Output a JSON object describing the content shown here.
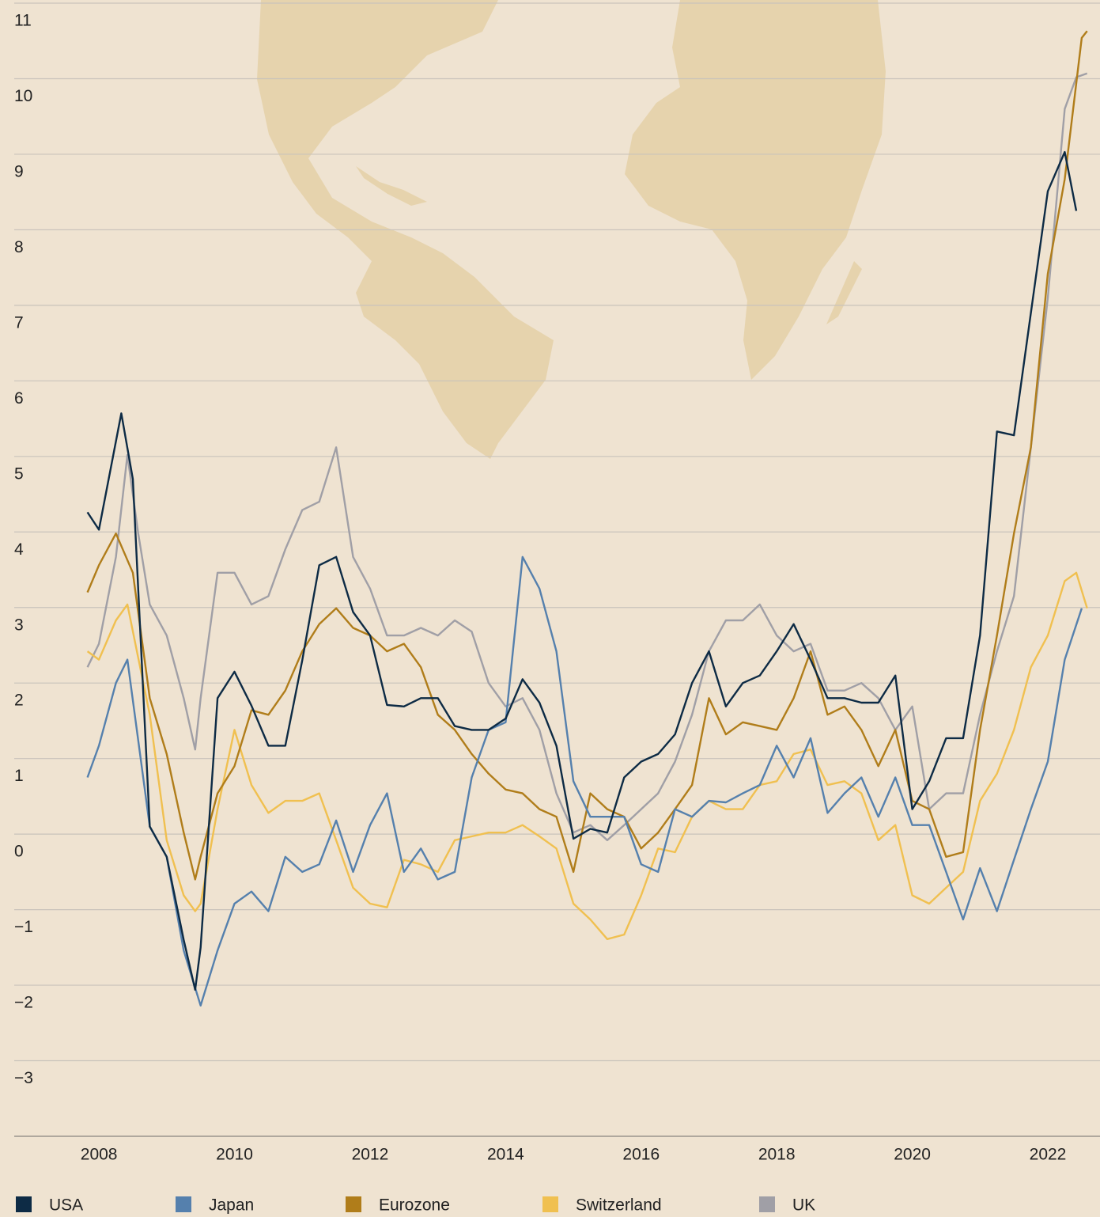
{
  "chart_data": {
    "type": "line",
    "xlim": [
      2006.54,
      2022.77
    ],
    "xticks": [
      2008,
      2010,
      2012,
      2014,
      2016,
      2018,
      2020,
      2022
    ],
    "ylim": [
      -4,
      11
    ],
    "yticks": [
      {
        "value": -3,
        "label": "−3"
      },
      {
        "value": -2,
        "label": "−2"
      },
      {
        "value": -1,
        "label": "−1"
      },
      0,
      1,
      2,
      3,
      4,
      5,
      6,
      7,
      8,
      9,
      10,
      11
    ],
    "grid": true,
    "series": [
      {
        "name": "USA",
        "color": "#0d2b45",
        "x": [
          2007.83,
          2008.0,
          2008.33,
          2008.5,
          2008.75,
          2009.0,
          2009.25,
          2009.42,
          2009.5,
          2009.75,
          2010.0,
          2010.25,
          2010.5,
          2010.75,
          2011.0,
          2011.25,
          2011.5,
          2011.75,
          2012.0,
          2012.25,
          2012.5,
          2012.75,
          2013.0,
          2013.25,
          2013.5,
          2013.75,
          2014.0,
          2014.25,
          2014.5,
          2014.75,
          2015.0,
          2015.25,
          2015.5,
          2015.75,
          2016.0,
          2016.25,
          2016.5,
          2016.75,
          2017.0,
          2017.25,
          2017.5,
          2017.75,
          2018.0,
          2018.25,
          2018.5,
          2018.75,
          2019.0,
          2019.25,
          2019.5,
          2019.75,
          2020.0,
          2020.25,
          2020.5,
          2020.75,
          2021.0,
          2021.25,
          2021.5,
          2021.75,
          2022.0,
          2022.25,
          2022.42
        ],
        "values": [
          4.26,
          4.03,
          5.57,
          4.7,
          0.1,
          -0.3,
          -1.4,
          -2.06,
          -1.5,
          1.8,
          2.15,
          1.7,
          1.17,
          1.17,
          2.3,
          3.56,
          3.67,
          2.94,
          2.63,
          1.71,
          1.69,
          1.8,
          1.8,
          1.43,
          1.38,
          1.38,
          1.53,
          2.05,
          1.74,
          1.17,
          -0.06,
          0.07,
          0.02,
          0.75,
          0.96,
          1.06,
          1.32,
          2.0,
          2.42,
          1.69,
          2.0,
          2.1,
          2.42,
          2.78,
          2.31,
          1.8,
          1.8,
          1.74,
          1.74,
          2.1,
          0.33,
          0.7,
          1.27,
          1.27,
          2.63,
          5.33,
          5.28,
          6.9,
          8.51,
          9.03,
          8.25
        ]
      },
      {
        "name": "Japan",
        "color": "#5580ad",
        "x": [
          2007.83,
          2008.0,
          2008.25,
          2008.42,
          2008.75,
          2009.0,
          2009.25,
          2009.5,
          2009.75,
          2010.0,
          2010.25,
          2010.5,
          2010.75,
          2011.0,
          2011.25,
          2011.5,
          2011.75,
          2012.0,
          2012.25,
          2012.5,
          2012.75,
          2013.0,
          2013.25,
          2013.5,
          2013.75,
          2014.0,
          2014.25,
          2014.5,
          2014.75,
          2015.0,
          2015.25,
          2015.5,
          2015.75,
          2016.0,
          2016.25,
          2016.5,
          2016.75,
          2017.0,
          2017.25,
          2017.5,
          2017.75,
          2018.0,
          2018.25,
          2018.5,
          2018.75,
          2019.0,
          2019.25,
          2019.5,
          2019.75,
          2020.0,
          2020.25,
          2020.5,
          2020.75,
          2021.0,
          2021.25,
          2021.5,
          2021.75,
          2022.0,
          2022.25,
          2022.5
        ],
        "values": [
          0.75,
          1.17,
          2.0,
          2.31,
          0.1,
          -0.3,
          -1.54,
          -2.27,
          -1.54,
          -0.92,
          -0.76,
          -1.02,
          -0.3,
          -0.5,
          -0.4,
          0.18,
          -0.5,
          0.12,
          0.54,
          -0.5,
          -0.19,
          -0.6,
          -0.5,
          0.75,
          1.38,
          1.48,
          3.67,
          3.25,
          2.42,
          0.7,
          0.23,
          0.23,
          0.23,
          -0.4,
          -0.5,
          0.33,
          0.23,
          0.44,
          0.42,
          0.54,
          0.65,
          1.17,
          0.75,
          1.27,
          0.28,
          0.54,
          0.75,
          0.23,
          0.75,
          0.12,
          0.12,
          -0.5,
          -1.13,
          -0.45,
          -1.02,
          -0.34,
          0.33,
          0.96,
          2.31,
          2.99
        ]
      },
      {
        "name": "Eurozone",
        "color": "#b07d1a",
        "x": [
          2007.83,
          2008.0,
          2008.25,
          2008.5,
          2008.75,
          2009.0,
          2009.25,
          2009.42,
          2009.5,
          2009.75,
          2010.0,
          2010.25,
          2010.5,
          2010.75,
          2011.0,
          2011.25,
          2011.5,
          2011.75,
          2012.0,
          2012.25,
          2012.5,
          2012.75,
          2013.0,
          2013.25,
          2013.5,
          2013.75,
          2014.0,
          2014.25,
          2014.5,
          2014.75,
          2015.0,
          2015.25,
          2015.5,
          2015.75,
          2016.0,
          2016.25,
          2016.5,
          2016.75,
          2017.0,
          2017.25,
          2017.5,
          2017.75,
          2018.0,
          2018.25,
          2018.5,
          2018.75,
          2019.0,
          2019.25,
          2019.5,
          2019.75,
          2020.0,
          2020.25,
          2020.5,
          2020.75,
          2021.0,
          2021.25,
          2021.5,
          2021.75,
          2022.0,
          2022.25,
          2022.5,
          2022.58
        ],
        "values": [
          3.2,
          3.56,
          3.98,
          3.46,
          1.8,
          1.06,
          0.02,
          -0.6,
          -0.3,
          0.54,
          0.9,
          1.64,
          1.58,
          1.9,
          2.42,
          2.78,
          2.99,
          2.73,
          2.63,
          2.42,
          2.52,
          2.21,
          1.58,
          1.38,
          1.06,
          0.8,
          0.59,
          0.54,
          0.33,
          0.23,
          -0.5,
          0.54,
          0.33,
          0.23,
          -0.19,
          0.02,
          0.33,
          0.65,
          1.8,
          1.32,
          1.48,
          1.43,
          1.38,
          1.8,
          2.42,
          1.58,
          1.69,
          1.38,
          0.9,
          1.38,
          0.44,
          0.33,
          -0.3,
          -0.24,
          1.38,
          2.63,
          3.98,
          5.12,
          7.42,
          8.67,
          10.54,
          10.63
        ]
      },
      {
        "name": "Switzerland",
        "color": "#f0c050",
        "x": [
          2007.83,
          2008.0,
          2008.25,
          2008.42,
          2008.75,
          2009.0,
          2009.25,
          2009.42,
          2009.5,
          2009.75,
          2010.0,
          2010.25,
          2010.5,
          2010.75,
          2011.0,
          2011.25,
          2011.5,
          2011.75,
          2012.0,
          2012.25,
          2012.5,
          2012.75,
          2013.0,
          2013.25,
          2013.5,
          2013.75,
          2014.0,
          2014.25,
          2014.5,
          2014.75,
          2015.0,
          2015.25,
          2015.5,
          2015.75,
          2016.0,
          2016.25,
          2016.5,
          2016.75,
          2017.0,
          2017.25,
          2017.5,
          2017.75,
          2018.0,
          2018.25,
          2018.5,
          2018.75,
          2019.0,
          2019.25,
          2019.5,
          2019.75,
          2020.0,
          2020.25,
          2020.5,
          2020.75,
          2021.0,
          2021.25,
          2021.5,
          2021.75,
          2022.0,
          2022.25,
          2022.42,
          2022.58
        ],
        "values": [
          2.42,
          2.31,
          2.83,
          3.04,
          1.58,
          -0.08,
          -0.81,
          -1.02,
          -0.92,
          0.33,
          1.38,
          0.65,
          0.28,
          0.44,
          0.44,
          0.54,
          -0.08,
          -0.71,
          -0.92,
          -0.97,
          -0.34,
          -0.4,
          -0.5,
          -0.08,
          -0.03,
          0.02,
          0.02,
          0.12,
          -0.03,
          -0.19,
          -0.92,
          -1.13,
          -1.39,
          -1.33,
          -0.81,
          -0.19,
          -0.24,
          0.23,
          0.44,
          0.33,
          0.33,
          0.65,
          0.7,
          1.06,
          1.12,
          0.65,
          0.7,
          0.54,
          -0.08,
          0.12,
          -0.81,
          -0.92,
          -0.71,
          -0.5,
          0.44,
          0.8,
          1.38,
          2.21,
          2.63,
          3.35,
          3.46,
          2.99
        ]
      },
      {
        "name": "UK",
        "color": "#a09fa6",
        "x": [
          2007.83,
          2008.0,
          2008.25,
          2008.42,
          2008.58,
          2008.75,
          2009.0,
          2009.25,
          2009.42,
          2009.5,
          2009.75,
          2010.0,
          2010.25,
          2010.5,
          2010.75,
          2011.0,
          2011.25,
          2011.5,
          2011.75,
          2012.0,
          2012.25,
          2012.5,
          2012.75,
          2013.0,
          2013.25,
          2013.5,
          2013.75,
          2014.0,
          2014.25,
          2014.5,
          2014.75,
          2015.0,
          2015.25,
          2015.5,
          2015.75,
          2016.0,
          2016.25,
          2016.5,
          2016.75,
          2017.0,
          2017.25,
          2017.5,
          2017.75,
          2018.0,
          2018.25,
          2018.5,
          2018.75,
          2019.0,
          2019.25,
          2019.5,
          2019.75,
          2020.0,
          2020.25,
          2020.5,
          2020.75,
          2021.0,
          2021.25,
          2021.5,
          2021.75,
          2022.0,
          2022.25,
          2022.42,
          2022.58
        ],
        "values": [
          2.21,
          2.52,
          3.67,
          5.02,
          3.98,
          3.04,
          2.63,
          1.8,
          1.12,
          1.8,
          3.46,
          3.46,
          3.04,
          3.15,
          3.77,
          4.29,
          4.4,
          5.12,
          3.67,
          3.25,
          2.63,
          2.63,
          2.73,
          2.63,
          2.83,
          2.68,
          2.0,
          1.69,
          1.8,
          1.38,
          0.54,
          0.02,
          0.12,
          -0.08,
          0.12,
          0.33,
          0.54,
          0.96,
          1.58,
          2.42,
          2.83,
          2.83,
          3.04,
          2.63,
          2.42,
          2.52,
          1.9,
          1.9,
          2.0,
          1.8,
          1.38,
          1.69,
          0.33,
          0.54,
          0.54,
          1.58,
          2.42,
          3.15,
          5.12,
          7.1,
          9.6,
          10.02,
          10.07
        ]
      }
    ]
  }
}
